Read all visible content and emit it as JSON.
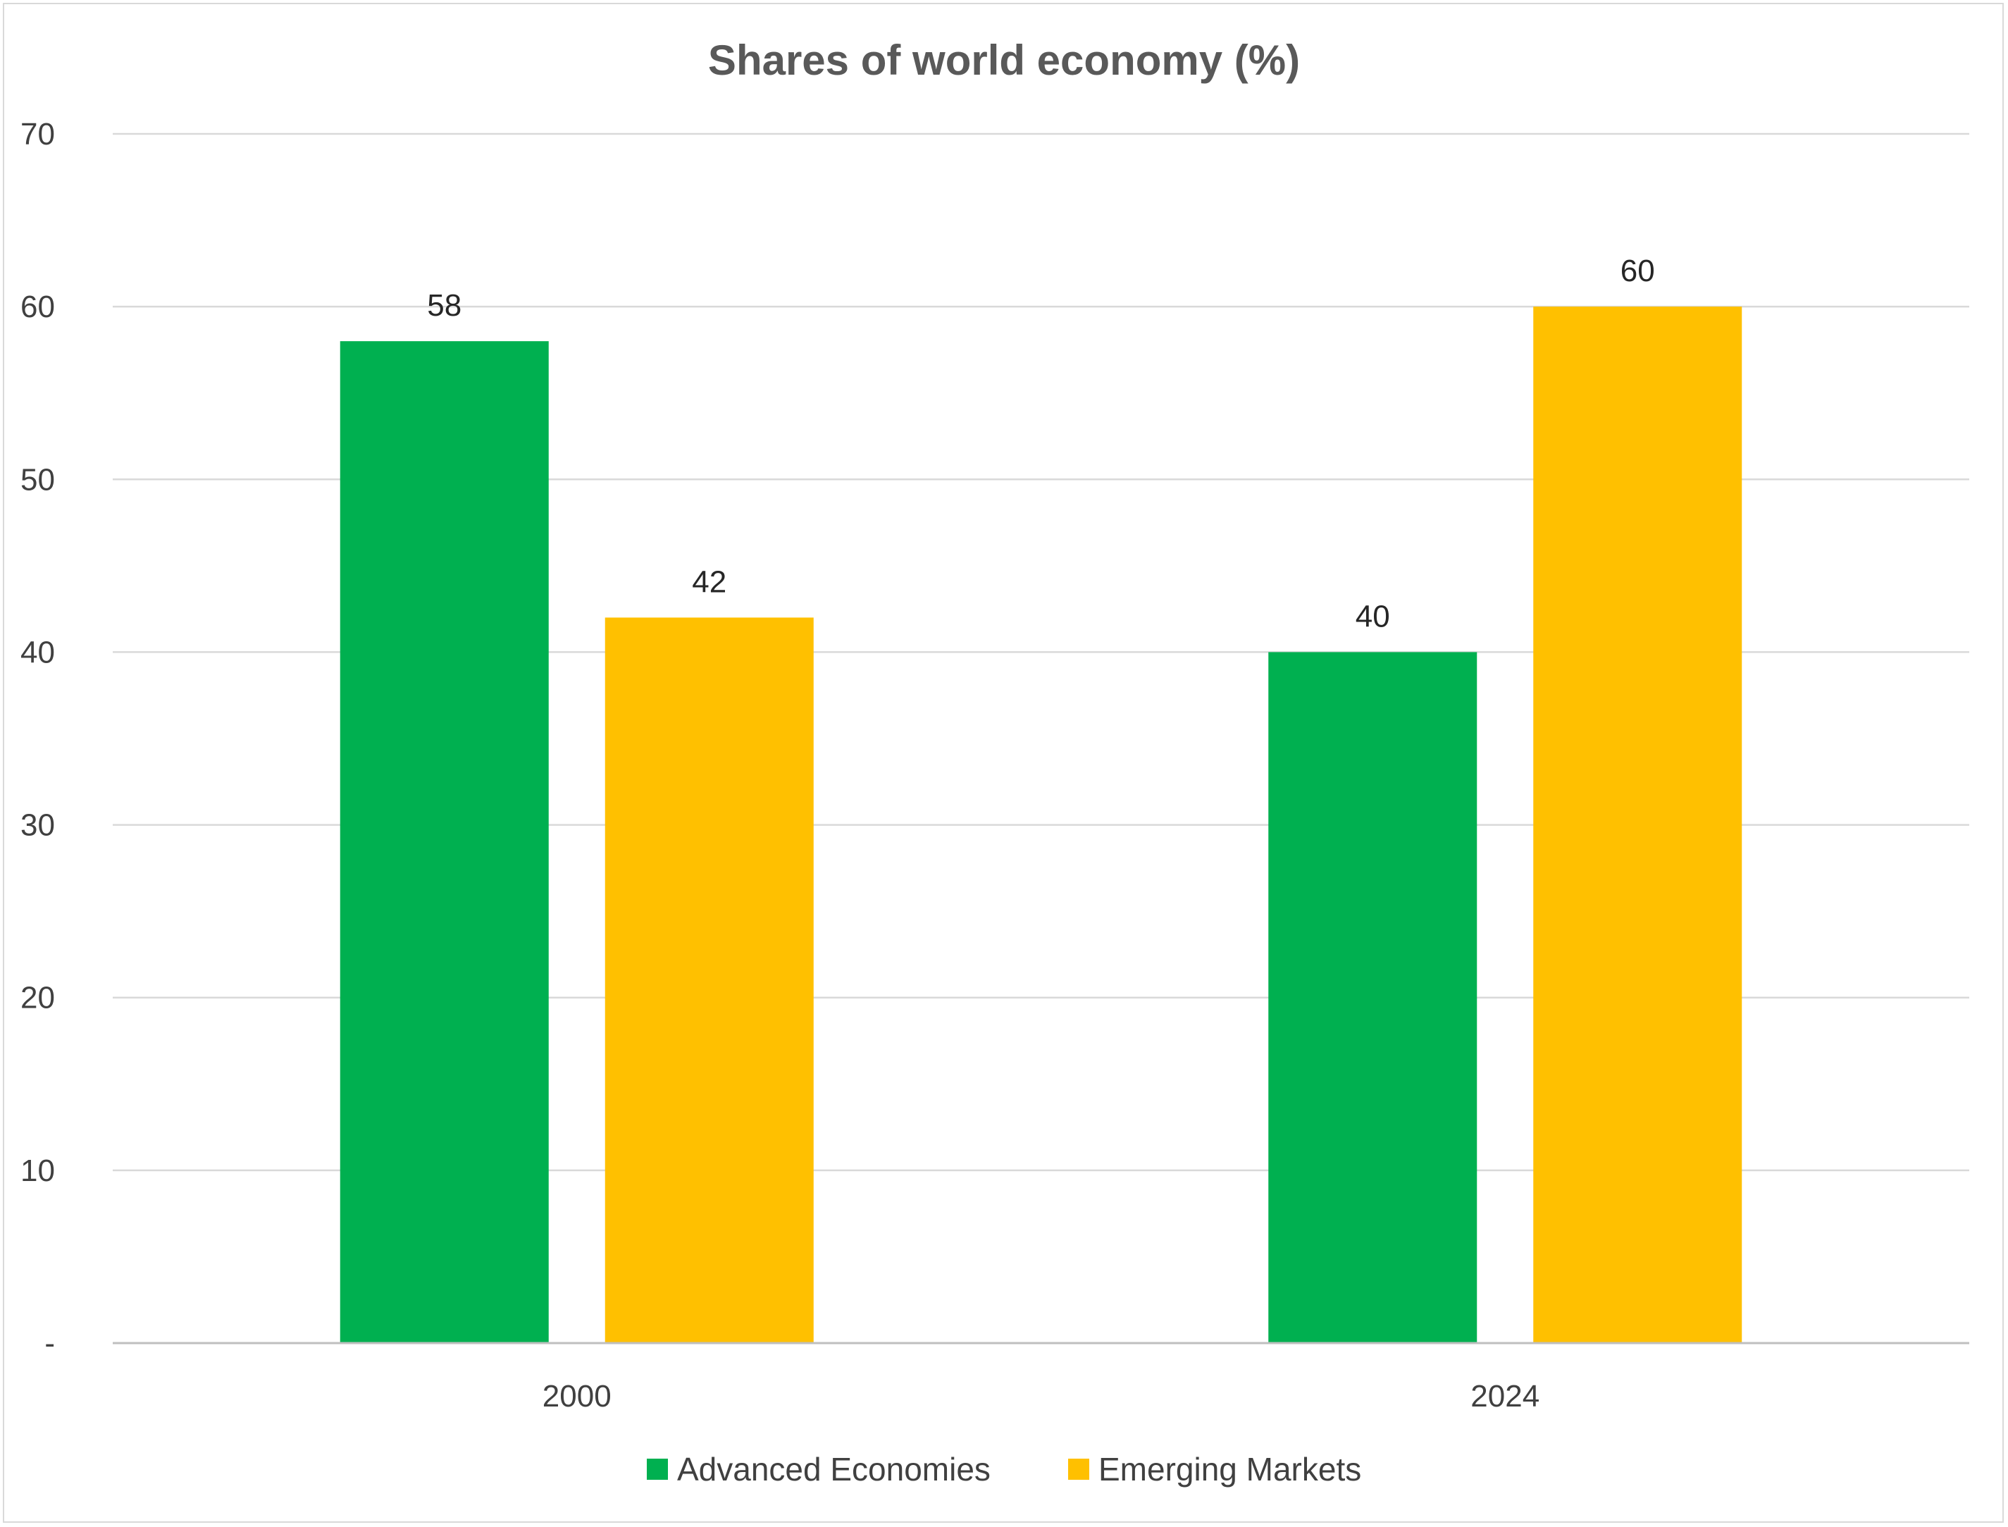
{
  "chart_data": {
    "type": "bar",
    "title": "Shares of world economy (%)",
    "categories": [
      "2000",
      "2024"
    ],
    "series": [
      {
        "name": "Advanced Economies",
        "color": "#00B050",
        "values": [
          58,
          40
        ],
        "labels": [
          "58",
          "40"
        ]
      },
      {
        "name": "Emerging Markets",
        "color": "#FFC000",
        "values": [
          42,
          60
        ],
        "labels": [
          "42",
          "60"
        ]
      }
    ],
    "y_ticks": [
      0,
      10,
      20,
      30,
      40,
      50,
      60,
      70
    ],
    "y_tick_labels": [
      "-",
      "10",
      "20",
      "30",
      "40",
      "50",
      "60",
      "70"
    ],
    "ylim": [
      0,
      70
    ],
    "xlabel": "",
    "ylabel": "",
    "grid": true,
    "legend_position": "bottom"
  }
}
